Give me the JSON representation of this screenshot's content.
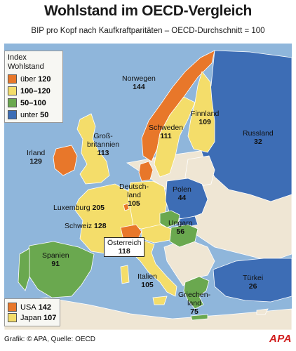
{
  "title": "Wohlstand im OECD-Vergleich",
  "subtitle": "BIP pro Kopf nach Kaufkraftparitäten – OECD-Durchschnitt = 100",
  "legend": {
    "title_line1": "Index",
    "title_line2": "Wohlstand",
    "items": [
      {
        "label_prefix": "über ",
        "label_value": "120",
        "color": "#e8772a"
      },
      {
        "label_prefix": "",
        "label_value": "100–120",
        "color": "#f4dd6a"
      },
      {
        "label_prefix": "",
        "label_value": "50–100",
        "color": "#6aa84f"
      },
      {
        "label_prefix": "unter ",
        "label_value": "50",
        "color": "#3d6db5"
      }
    ]
  },
  "countries": {
    "norwegen": {
      "name": "Norwegen",
      "value": "144"
    },
    "schweden": {
      "name": "Schweden",
      "value": "111"
    },
    "finnland": {
      "name": "Finnland",
      "value": "109"
    },
    "russland": {
      "name": "Russland",
      "value": "32"
    },
    "irland": {
      "name": "Irland",
      "value": "129"
    },
    "grossbritannien": {
      "name_line1": "Groß-",
      "name_line2": "britannien",
      "value": "113"
    },
    "deutschland": {
      "name_line1": "Deutsch-",
      "name_line2": "land",
      "value": "105"
    },
    "polen": {
      "name": "Polen",
      "value": "44"
    },
    "luxemburg": {
      "name": "Luxemburg",
      "value": "205"
    },
    "schweiz": {
      "name": "Schweiz",
      "value": "128"
    },
    "ungarn": {
      "name": "Ungarn",
      "value": "56"
    },
    "oesterreich": {
      "name": "Österreich",
      "value": "118"
    },
    "spanien": {
      "name": "Spanien",
      "value": "91"
    },
    "italien": {
      "name": "Italien",
      "value": "105"
    },
    "tuerkei": {
      "name": "Türkei",
      "value": "26"
    },
    "griechenland": {
      "name_line1": "Griechen-",
      "name_line2": "land",
      "value": "75"
    }
  },
  "comparison": [
    {
      "name": "USA",
      "value": "142",
      "color": "#e8772a"
    },
    {
      "name": "Japan",
      "value": "107",
      "color": "#f4dd6a"
    }
  ],
  "credit": "Grafik: © APA, Quelle: OECD",
  "logo": "APA",
  "colors": {
    "sea": "#8fb6db",
    "non_oecd": "#efe6d4",
    "border": "#ffffff"
  }
}
